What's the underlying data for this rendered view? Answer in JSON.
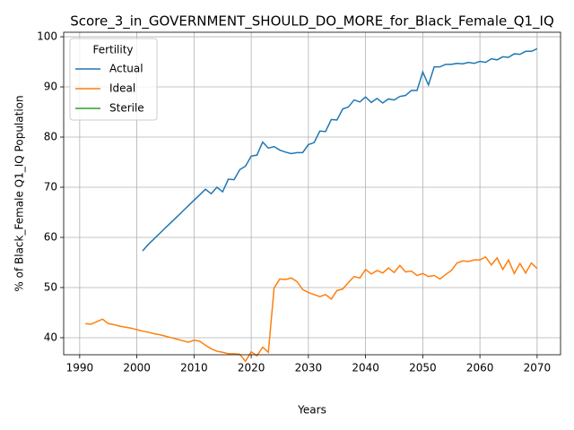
{
  "chart_data": {
    "type": "line",
    "title": "Score_3_in_GOVERNMENT_SHOULD_DO_MORE_for_Black_Female_Q1_IQ",
    "x_label": "Years",
    "y_label": "% of Black_Female Q1_IQ Population",
    "legend_title": "Fertility",
    "legend": "upper left",
    "grid": true,
    "x": [
      1991,
      1992,
      1993,
      1994,
      1995,
      1996,
      1997,
      1998,
      1999,
      2000,
      2001,
      2002,
      2003,
      2004,
      2005,
      2006,
      2007,
      2008,
      2009,
      2010,
      2011,
      2012,
      2013,
      2014,
      2015,
      2016,
      2017,
      2018,
      2019,
      2020,
      2021,
      2022,
      2023,
      2024,
      2025,
      2026,
      2027,
      2028,
      2029,
      2030,
      2031,
      2032,
      2033,
      2034,
      2035,
      2036,
      2037,
      2038,
      2039,
      2040,
      2041,
      2042,
      2043,
      2044,
      2045,
      2046,
      2047,
      2048,
      2049,
      2050,
      2051,
      2052,
      2053,
      2054,
      2055,
      2056,
      2057,
      2058,
      2059,
      2060,
      2061,
      2062,
      2063,
      2064,
      2065,
      2066,
      2067,
      2068,
      2069,
      2070
    ],
    "series": [
      {
        "name": "Actual",
        "color": "#1f77b4",
        "values": [
          null,
          null,
          null,
          null,
          null,
          null,
          null,
          null,
          null,
          null,
          57.3,
          58.6,
          59.7,
          60.8,
          61.9,
          63.0,
          64.1,
          65.2,
          66.3,
          67.4,
          68.5,
          69.6,
          68.7,
          70.0,
          69.1,
          71.6,
          71.5,
          73.5,
          74.2,
          76.2,
          76.4,
          79.0,
          77.8,
          78.1,
          77.4,
          77.0,
          76.7,
          76.9,
          76.9,
          78.5,
          78.9,
          81.2,
          81.1,
          83.5,
          83.4,
          85.6,
          86.0,
          87.4,
          87.0,
          88.0,
          86.9,
          87.7,
          86.8,
          87.6,
          87.4,
          88.1,
          88.3,
          89.3,
          89.3,
          93.0,
          90.4,
          94.0,
          94.0,
          94.5,
          94.5,
          94.7,
          94.6,
          94.9,
          94.7,
          95.1,
          94.9,
          95.6,
          95.4,
          96.0,
          95.9,
          96.6,
          96.5,
          97.1,
          97.1,
          97.6
        ]
      },
      {
        "name": "Ideal",
        "color": "#ff7f0e",
        "values": [
          42.8,
          42.7,
          43.2,
          43.7,
          42.8,
          42.6,
          42.3,
          42.1,
          41.9,
          41.6,
          41.3,
          41.1,
          40.8,
          40.6,
          40.3,
          40.0,
          39.7,
          39.4,
          39.1,
          39.5,
          39.3,
          38.5,
          37.8,
          37.3,
          37.1,
          36.8,
          36.8,
          36.7,
          35.3,
          37.2,
          36.4,
          38.1,
          37.1,
          49.9,
          51.7,
          51.6,
          51.9,
          51.2,
          49.6,
          49.0,
          48.6,
          48.2,
          48.6,
          47.7,
          49.4,
          49.7,
          51.0,
          52.2,
          51.9,
          53.6,
          52.7,
          53.4,
          52.9,
          53.9,
          53.0,
          54.4,
          53.1,
          53.3,
          52.4,
          52.8,
          52.2,
          52.4,
          51.7,
          52.6,
          53.4,
          54.9,
          55.3,
          55.2,
          55.5,
          55.5,
          56.1,
          54.5,
          55.9,
          53.6,
          55.5,
          52.8,
          54.8,
          52.9,
          54.9,
          53.8
        ]
      },
      {
        "name": "Sterile",
        "color": "#2ca02c",
        "values": [
          null,
          null,
          null,
          null,
          null,
          null,
          null,
          null,
          null,
          null,
          null,
          null,
          null,
          null,
          null,
          null,
          null,
          null,
          null,
          null,
          null,
          null,
          null,
          null,
          null,
          null,
          null,
          null,
          null,
          null,
          null,
          null,
          null,
          null,
          null,
          null,
          null,
          null,
          null,
          null,
          null,
          null,
          null,
          null,
          null,
          null,
          null,
          null,
          null,
          null,
          null,
          null,
          null,
          null,
          null,
          null,
          null,
          null,
          null,
          null,
          null,
          null,
          null,
          null,
          null,
          null,
          null,
          null,
          null,
          null,
          null,
          null,
          null,
          null,
          null,
          null,
          null,
          null,
          null,
          null
        ]
      }
    ],
    "xlim": [
      1987.2,
      2074.1
    ],
    "xticks": [
      1990,
      2000,
      2010,
      2020,
      2030,
      2040,
      2050,
      2060,
      2070
    ],
    "ylim": [
      36.6,
      100.9
    ],
    "yticks": [
      40,
      50,
      60,
      70,
      80,
      90,
      100
    ]
  }
}
